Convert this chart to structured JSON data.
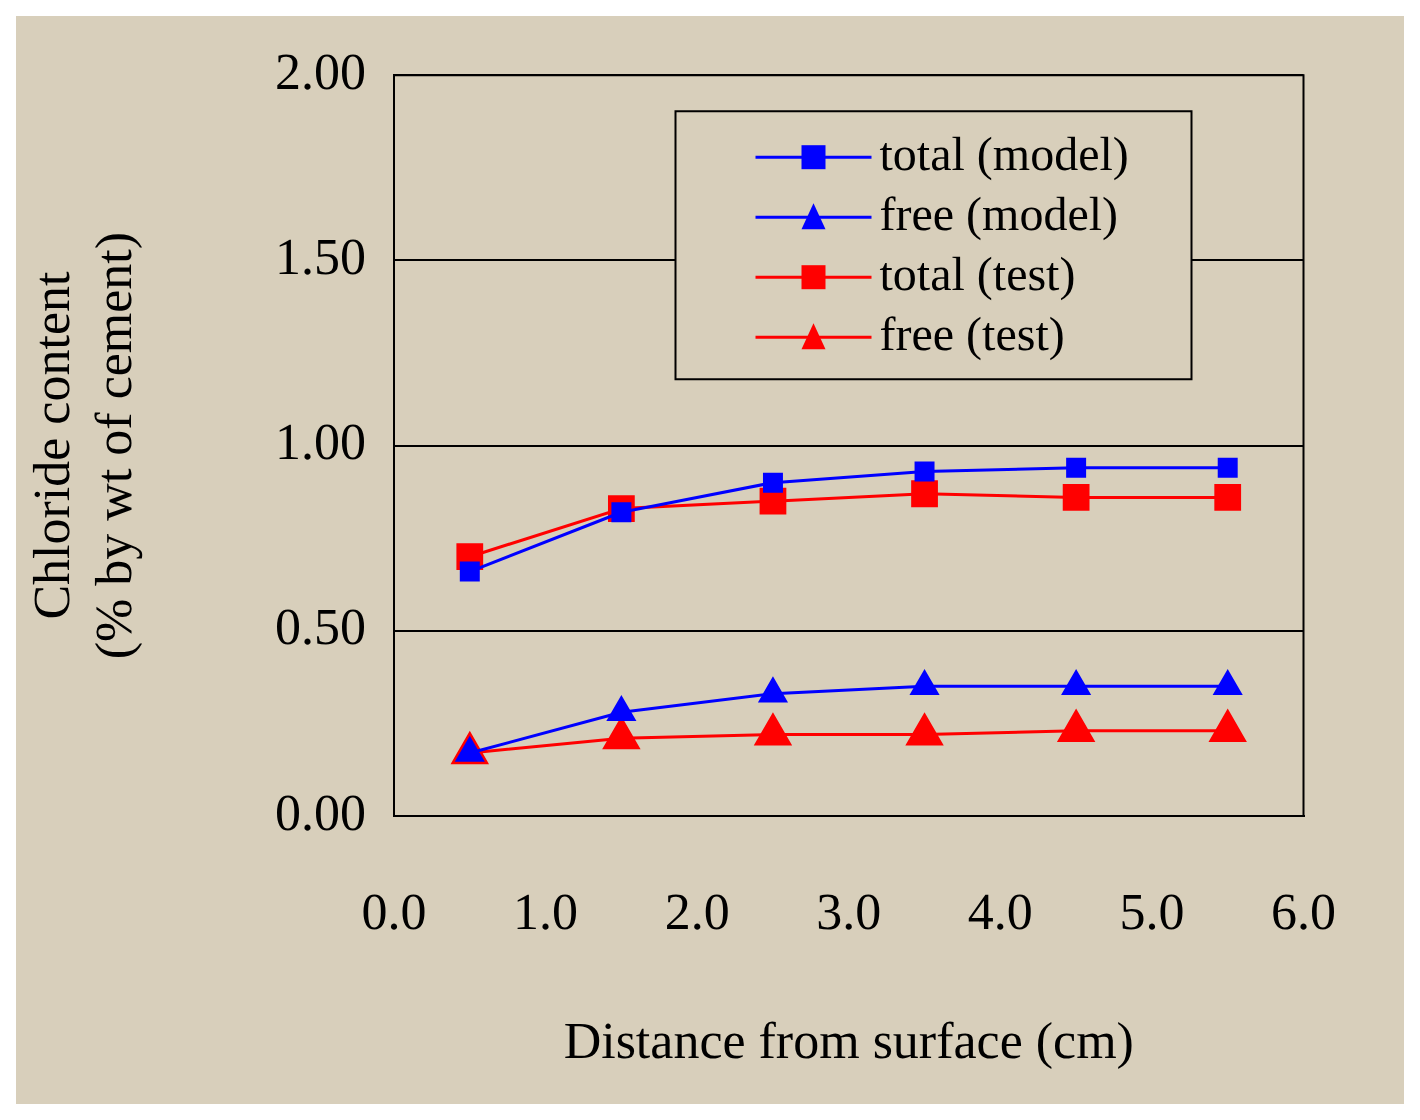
{
  "chart_data": {
    "type": "line",
    "xlabel": "Distance from surface (cm)",
    "ylabel": "Chloride content\n(% by wt of cement)",
    "xlim": [
      0,
      6
    ],
    "xticks": [
      {
        "value": 0,
        "label": "0.0"
      },
      {
        "value": 1,
        "label": "1.0"
      },
      {
        "value": 2,
        "label": "2.0"
      },
      {
        "value": 3,
        "label": "3.0"
      },
      {
        "value": 4,
        "label": "4.0"
      },
      {
        "value": 5,
        "label": "5.0"
      },
      {
        "value": 6,
        "label": "6.0"
      }
    ],
    "ylim": [
      0,
      2
    ],
    "yticks": [
      {
        "value": 0,
        "label": "0.00"
      },
      {
        "value": 0.5,
        "label": "0.50"
      },
      {
        "value": 1,
        "label": "1.00"
      },
      {
        "value": 1.5,
        "label": "1.50"
      },
      {
        "value": 2,
        "label": "2.00"
      }
    ],
    "x": [
      0.5,
      1.5,
      2.5,
      3.5,
      4.5,
      5.5
    ],
    "grid": "y",
    "legend": "top right",
    "series": [
      {
        "name": "total (model)",
        "color": "#0000ff",
        "marker": "square",
        "values": [
          0.66,
          0.82,
          0.9,
          0.93,
          0.94,
          0.94
        ]
      },
      {
        "name": "free (model)",
        "color": "#0000ff",
        "marker": "triangle",
        "values": [
          0.17,
          0.28,
          0.33,
          0.35,
          0.35,
          0.35
        ]
      },
      {
        "name": "total (test)",
        "color": "#ff0000",
        "marker": "square",
        "values": [
          0.7,
          0.83,
          0.85,
          0.87,
          0.86,
          0.86
        ]
      },
      {
        "name": "free (test)",
        "color": "#ff0000",
        "marker": "triangle",
        "values": [
          0.17,
          0.21,
          0.22,
          0.22,
          0.23,
          0.23
        ]
      }
    ]
  }
}
